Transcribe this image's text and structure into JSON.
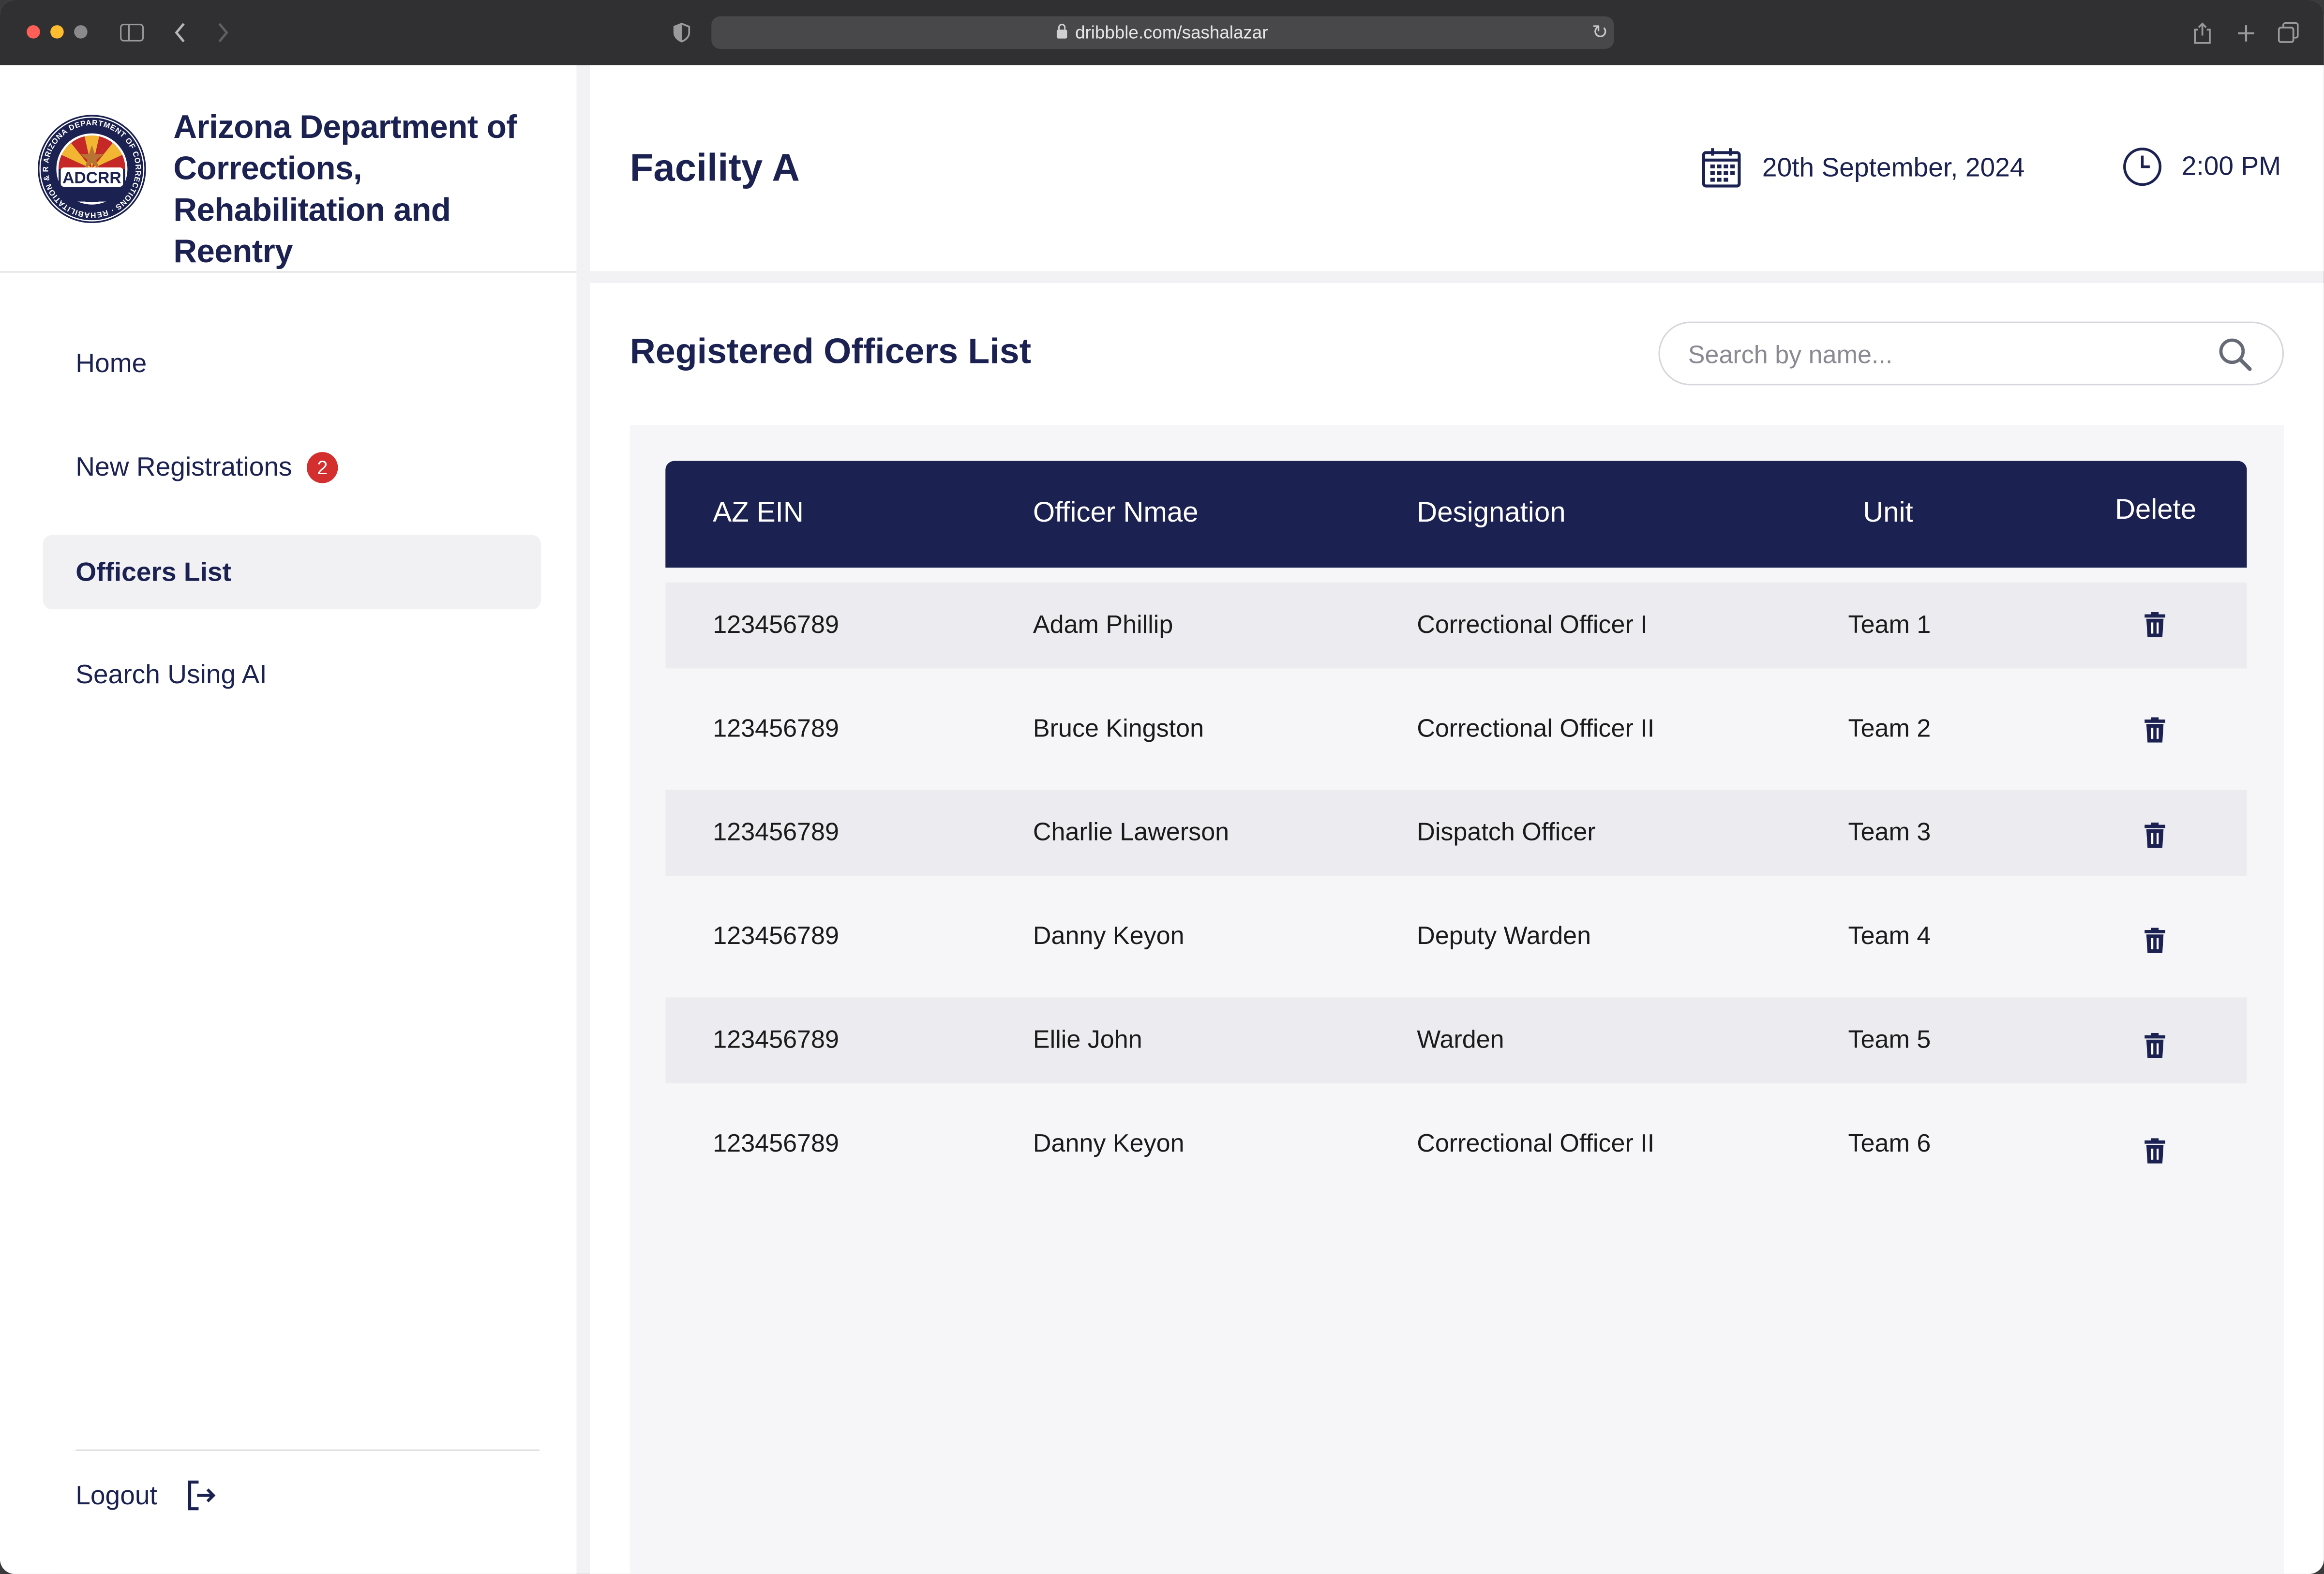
{
  "browser": {
    "url": "dribbble.com/sashalazar"
  },
  "brand": {
    "name": "Arizona Department of Corrections, Rehabilitation and Reentry",
    "seal_text": "ADCRR",
    "seal_ring_text": "ARIZONA DEPARTMENT OF CORRECTIONS · REHABILITATION & REENTRY"
  },
  "sidebar": {
    "items": [
      {
        "label": "Home"
      },
      {
        "label": "New Registrations",
        "badge": "2"
      },
      {
        "label": "Officers List"
      },
      {
        "label": "Search Using AI"
      }
    ],
    "logout_label": "Logout"
  },
  "header": {
    "facility": "Facility A",
    "date": "20th September, 2024",
    "time": "2:00 PM"
  },
  "main": {
    "title": "Registered Officers List",
    "search_placeholder": "Search by name..."
  },
  "table": {
    "columns": [
      "AZ EIN",
      "Officer Nmae",
      "Designation",
      "Unit",
      "Delete"
    ],
    "rows": [
      {
        "ein": "123456789",
        "name": "Adam Phillip",
        "designation": "Correctional Officer I",
        "unit": "Team 1"
      },
      {
        "ein": "123456789",
        "name": "Bruce Kingston",
        "designation": "Correctional Officer II",
        "unit": "Team 2"
      },
      {
        "ein": "123456789",
        "name": "Charlie Lawerson",
        "designation": "Dispatch Officer",
        "unit": "Team 3"
      },
      {
        "ein": "123456789",
        "name": "Danny Keyon",
        "designation": "Deputy Warden",
        "unit": "Team 4"
      },
      {
        "ein": "123456789",
        "name": "Ellie John",
        "designation": "Warden",
        "unit": "Team 5"
      },
      {
        "ein": "123456789",
        "name": "Danny Keyon",
        "designation": "Correctional Officer II",
        "unit": "Team 6"
      }
    ]
  },
  "colors": {
    "navy": "#1b2150",
    "badge_red": "#d32f2f",
    "row_shade": "#ececf0",
    "panel_bg": "#f6f6f8"
  }
}
